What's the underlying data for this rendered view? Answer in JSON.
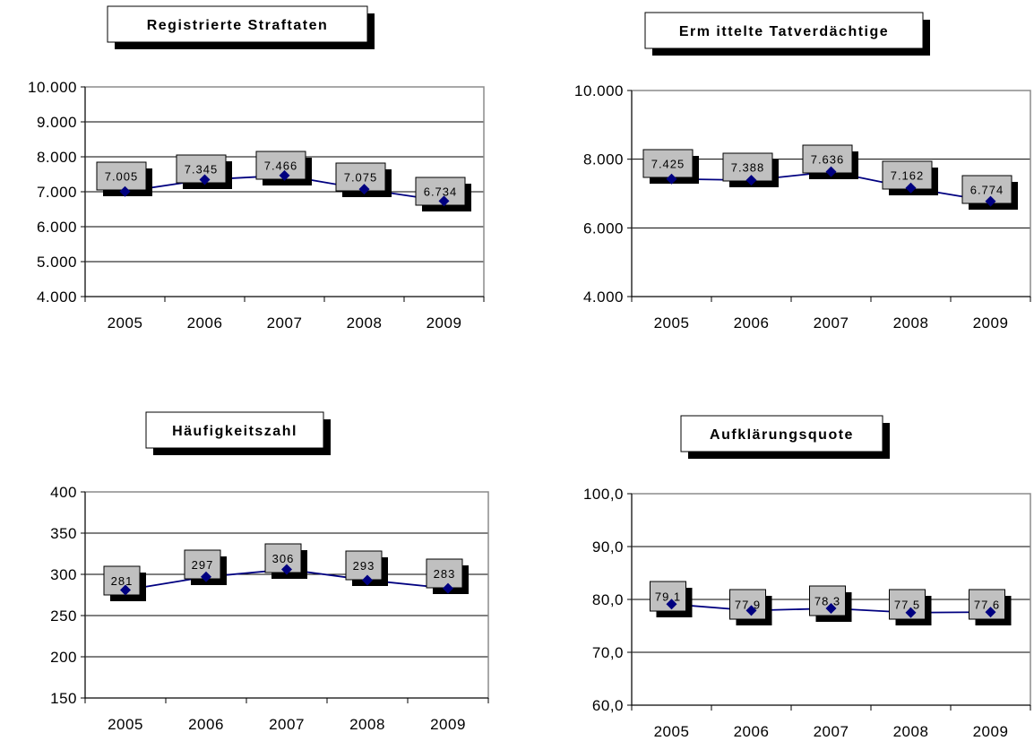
{
  "chart_data": [
    {
      "type": "line",
      "title": "Registrierte Straftaten",
      "categories": [
        "2005",
        "2006",
        "2007",
        "2008",
        "2009"
      ],
      "values": [
        7005,
        7345,
        7466,
        7075,
        6734
      ],
      "data_labels": [
        "7.005",
        "7.345",
        "7.466",
        "7.075",
        "6.734"
      ],
      "ylim": [
        4000,
        10000
      ],
      "yticks": [
        4000,
        5000,
        6000,
        7000,
        8000,
        9000,
        10000
      ],
      "ytick_labels": [
        "4.000",
        "5.000",
        "6.000",
        "7.000",
        "8.000",
        "9.000",
        "10.000"
      ],
      "grid": true,
      "color": "#000080"
    },
    {
      "type": "line",
      "title": "Erm ittelte Tatverdächtige",
      "categories": [
        "2005",
        "2006",
        "2007",
        "2008",
        "2009"
      ],
      "values": [
        7425,
        7388,
        7636,
        7162,
        6774
      ],
      "data_labels": [
        "7.425",
        "7.388",
        "7.636",
        "7.162",
        "6.774"
      ],
      "ylim": [
        4000,
        10000
      ],
      "yticks": [
        4000,
        6000,
        8000,
        10000
      ],
      "ytick_labels": [
        "4.000",
        "6.000",
        "8.000",
        "10.000"
      ],
      "grid": true,
      "color": "#000080"
    },
    {
      "type": "line",
      "title": "Häufigkeitszahl",
      "categories": [
        "2005",
        "2006",
        "2007",
        "2008",
        "2009"
      ],
      "values": [
        281,
        297,
        306,
        293,
        283
      ],
      "data_labels": [
        "281",
        "297",
        "306",
        "293",
        "283"
      ],
      "ylim": [
        150,
        400
      ],
      "yticks": [
        150,
        200,
        250,
        300,
        350,
        400
      ],
      "ytick_labels": [
        "150",
        "200",
        "250",
        "300",
        "350",
        "400"
      ],
      "grid": true,
      "color": "#000080"
    },
    {
      "type": "line",
      "title": "Aufklärungsquote",
      "categories": [
        "2005",
        "2006",
        "2007",
        "2008",
        "2009"
      ],
      "values": [
        79.1,
        77.9,
        78.3,
        77.5,
        77.6
      ],
      "data_labels": [
        "79,1",
        "77,9",
        "78,3",
        "77,5",
        "77,6"
      ],
      "ylim": [
        60,
        100
      ],
      "yticks": [
        60,
        70,
        80,
        90,
        100
      ],
      "ytick_labels": [
        "60,0",
        "70,0",
        "80,0",
        "90,0",
        "100,0"
      ],
      "grid": true,
      "color": "#000080"
    }
  ]
}
